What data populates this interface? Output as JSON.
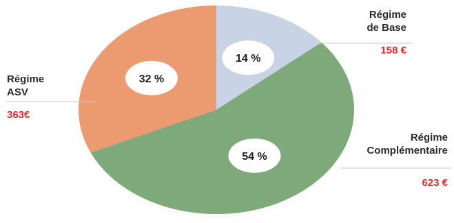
{
  "chart_data": {
    "type": "pie",
    "slices": [
      {
        "label_lines": [
          "Régime",
          "de Base"
        ],
        "percent": "14 %",
        "value": 158,
        "amount": "158 €",
        "color": "#c9d3e6"
      },
      {
        "label_lines": [
          "Régime",
          "Complémentaire"
        ],
        "percent": "54 %",
        "value": 623,
        "amount": "623 €",
        "color": "#7ea97a"
      },
      {
        "label_lines": [
          "Régime",
          "ASV"
        ],
        "percent": "32 %",
        "value": 363,
        "amount": "363€",
        "color": "#ec9a6f"
      }
    ],
    "amount_color": "#e8262b",
    "leader_line_color": "#c9c9c9"
  }
}
